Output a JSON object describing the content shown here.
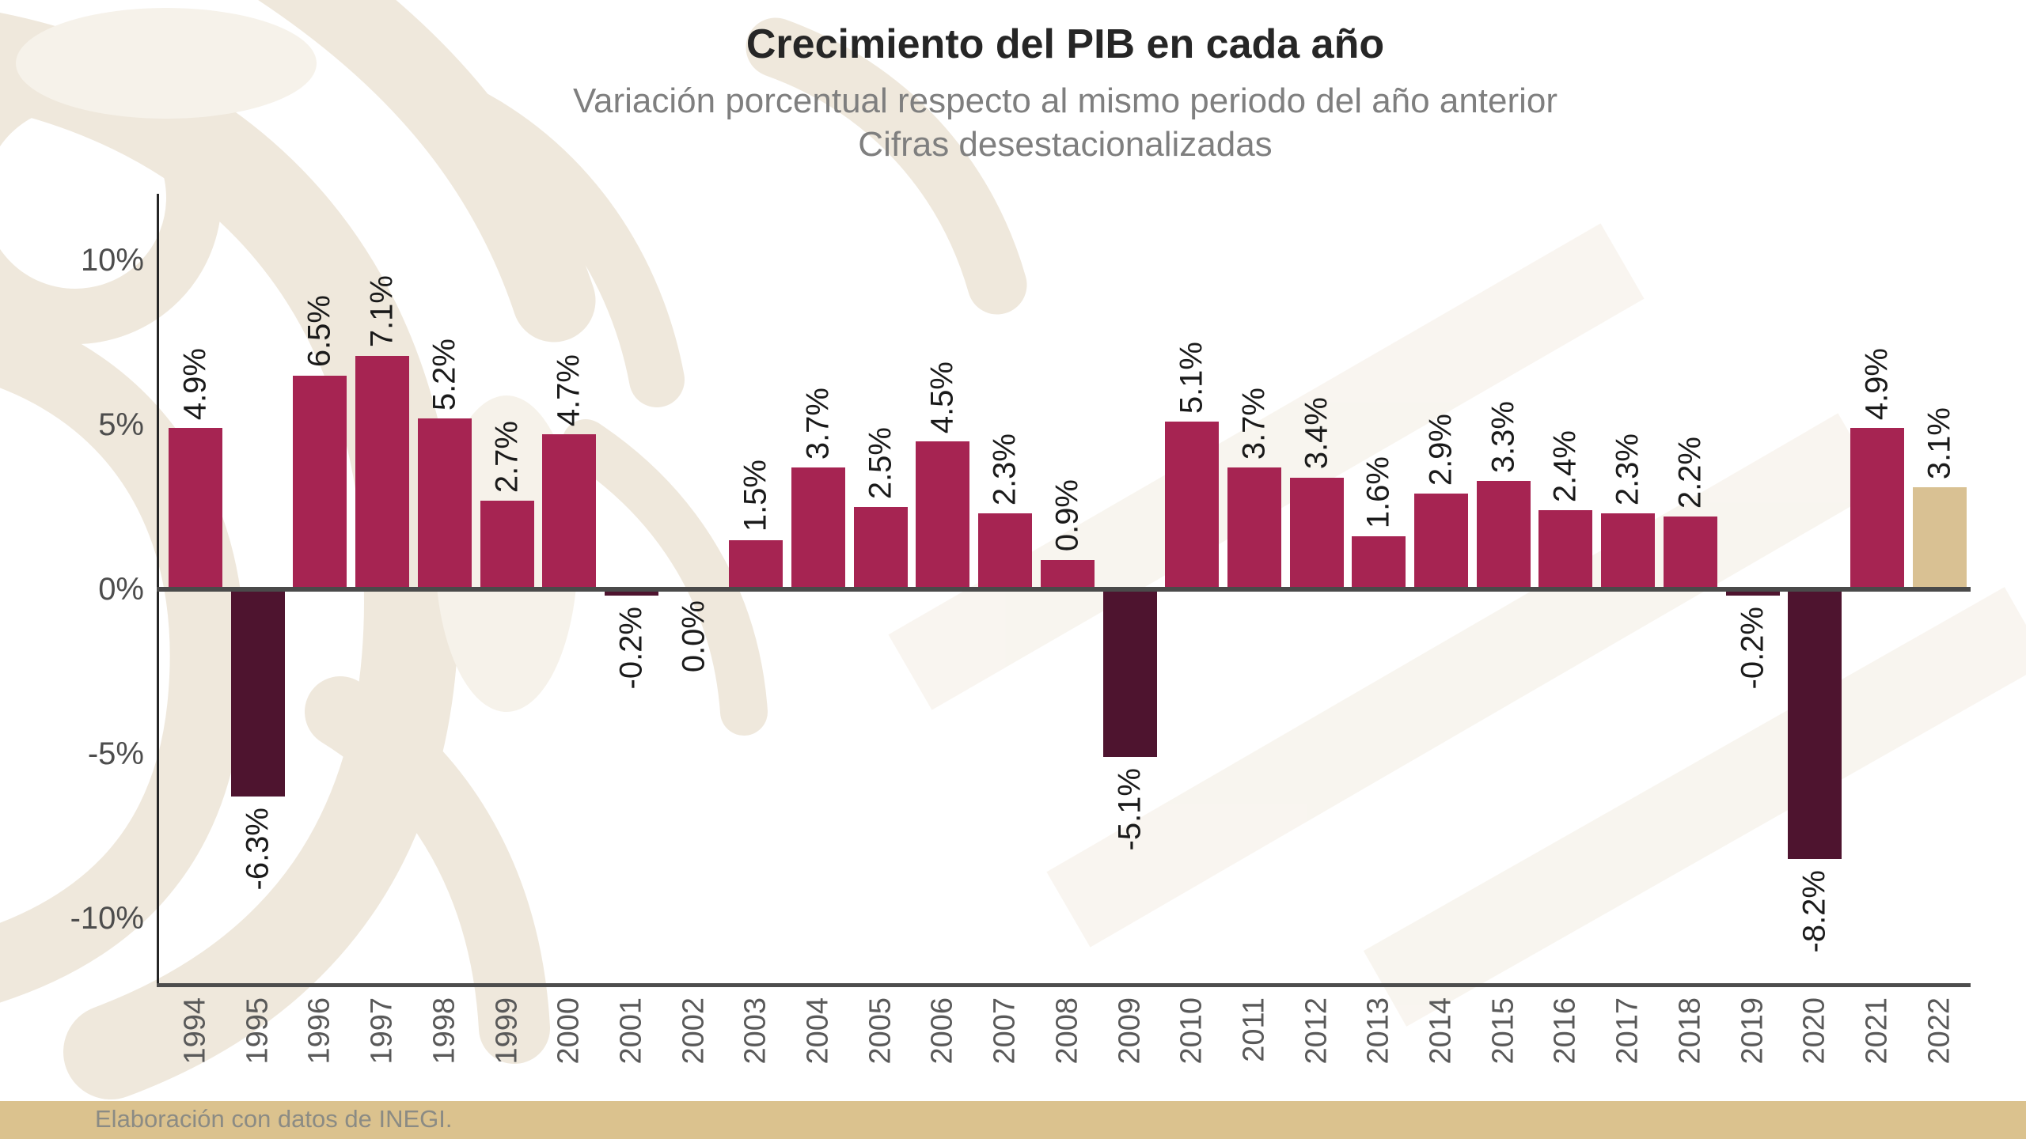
{
  "title": "Crecimiento del PIB en cada año",
  "subtitle_line1": "Variación porcentual respecto al mismo periodo del año anterior",
  "subtitle_line2": "Cifras desestacionalizadas",
  "footer": {
    "text": "Elaboración con datos de INEGI."
  },
  "colors": {
    "positive_bar": "#A62452",
    "negative_bar": "#4E142F",
    "highlight_bar": "#D9C193",
    "zero_line": "#4A4A4A",
    "axis_line": "#262626",
    "baseline": "#4D4D4D",
    "tick_label": "#4D4D4D",
    "year_label": "#595959",
    "data_label": "#1A1A1A",
    "footer_band": "#DBC28E",
    "footer_text": "#8B8B84",
    "watermark": "#EFE8DC"
  },
  "y_axis": {
    "tick_labels": [
      "10%",
      "5%",
      "0%",
      "-5%",
      "-10%"
    ],
    "tick_values": [
      10,
      5,
      0,
      -5,
      -10
    ]
  },
  "chart_data": {
    "type": "bar",
    "title": "Crecimiento del PIB en cada año",
    "subtitle": "Variación porcentual respecto al mismo periodo del año anterior. Cifras desestacionalizadas",
    "categories": [
      "1994",
      "1995",
      "1996",
      "1997",
      "1998",
      "1999",
      "2000",
      "2001",
      "2002",
      "2003",
      "2004",
      "2005",
      "2006",
      "2007",
      "2008",
      "2009",
      "2010",
      "2011",
      "2012",
      "2013",
      "2014",
      "2015",
      "2016",
      "2017",
      "2018",
      "2019",
      "2020",
      "2021",
      "2022"
    ],
    "values": [
      4.9,
      -6.3,
      6.5,
      7.1,
      5.2,
      2.7,
      4.7,
      -0.2,
      0.0,
      1.5,
      3.7,
      2.5,
      4.5,
      2.3,
      0.9,
      -5.1,
      5.1,
      3.7,
      3.4,
      1.6,
      2.9,
      3.3,
      2.4,
      2.3,
      2.2,
      -0.2,
      -8.2,
      4.9,
      3.1
    ],
    "labels": [
      "4.9%",
      "-6.3%",
      "6.5%",
      "7.1%",
      "5.2%",
      "2.7%",
      "4.7%",
      "-0.2%",
      "0.0%",
      "1.5%",
      "3.7%",
      "2.5%",
      "4.5%",
      "2.3%",
      "0.9%",
      "-5.1%",
      "5.1%",
      "3.7%",
      "3.4%",
      "1.6%",
      "2.9%",
      "3.3%",
      "2.4%",
      "2.3%",
      "2.2%",
      "-0.2%",
      "-8.2%",
      "4.9%",
      "3.1%"
    ],
    "highlight_category": "2022",
    "xlabel": "",
    "ylabel": "",
    "ylim": [
      -12,
      12
    ],
    "grid": false,
    "legend": "none",
    "source_note": "Elaboración con datos de INEGI."
  }
}
